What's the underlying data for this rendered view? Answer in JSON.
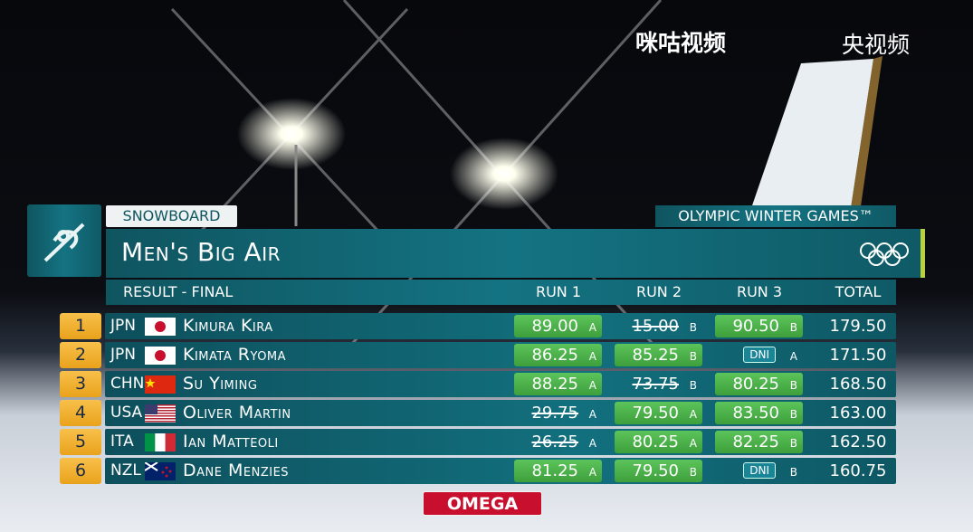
{
  "logos": {
    "migu": "咪咕视频",
    "cctv": "央视频",
    "sponsor": "OMEGA"
  },
  "header": {
    "sport": "SNOWBOARD",
    "games": "OLYMPIC WINTER GAMES™",
    "event": "Men's Big Air",
    "phase": "RESULT - FINAL"
  },
  "columns": [
    "RUN 1",
    "RUN 2",
    "RUN 3",
    "TOTAL"
  ],
  "rows": [
    {
      "rank": "1",
      "noc": "JPN",
      "name": "Kimura Kira",
      "runs": [
        {
          "score": "89.00",
          "grade": "A",
          "mark": "counted"
        },
        {
          "score": "15.00",
          "grade": "B",
          "mark": "dropped"
        },
        {
          "score": "90.50",
          "grade": "B",
          "mark": "counted"
        }
      ],
      "total": "179.50"
    },
    {
      "rank": "2",
      "noc": "JPN",
      "name": "Kimata Ryoma",
      "runs": [
        {
          "score": "86.25",
          "grade": "A",
          "mark": "counted"
        },
        {
          "score": "85.25",
          "grade": "B",
          "mark": "counted"
        },
        {
          "score": "DNI",
          "grade": "A",
          "mark": "dni"
        }
      ],
      "total": "171.50"
    },
    {
      "rank": "3",
      "noc": "CHN",
      "name": "Su Yiming",
      "runs": [
        {
          "score": "88.25",
          "grade": "A",
          "mark": "counted"
        },
        {
          "score": "73.75",
          "grade": "B",
          "mark": "dropped"
        },
        {
          "score": "80.25",
          "grade": "B",
          "mark": "counted"
        }
      ],
      "total": "168.50"
    },
    {
      "rank": "4",
      "noc": "USA",
      "name": "Oliver Martin",
      "runs": [
        {
          "score": "29.75",
          "grade": "A",
          "mark": "dropped"
        },
        {
          "score": "79.50",
          "grade": "A",
          "mark": "counted"
        },
        {
          "score": "83.50",
          "grade": "B",
          "mark": "counted"
        }
      ],
      "total": "163.00"
    },
    {
      "rank": "5",
      "noc": "ITA",
      "name": "Ian Matteoli",
      "runs": [
        {
          "score": "26.25",
          "grade": "A",
          "mark": "dropped"
        },
        {
          "score": "80.25",
          "grade": "A",
          "mark": "counted"
        },
        {
          "score": "82.25",
          "grade": "B",
          "mark": "counted"
        }
      ],
      "total": "162.50"
    },
    {
      "rank": "6",
      "noc": "NZL",
      "name": "Dane Menzies",
      "runs": [
        {
          "score": "81.25",
          "grade": "A",
          "mark": "counted"
        },
        {
          "score": "79.50",
          "grade": "B",
          "mark": "counted"
        },
        {
          "score": "DNI",
          "grade": "B",
          "mark": "dni"
        }
      ],
      "total": "160.75"
    }
  ]
}
